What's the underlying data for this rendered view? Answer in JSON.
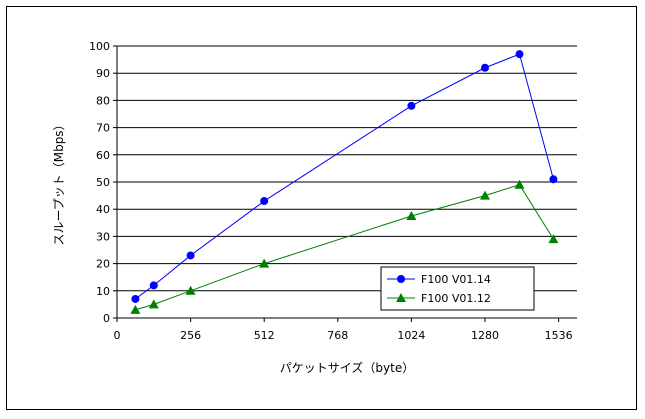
{
  "chart_data": {
    "type": "line",
    "xlabel": "パケットサイズ（byte）",
    "ylabel": "スループット（Mbps）",
    "xlim": [
      0,
      1600
    ],
    "ylim": [
      0,
      100
    ],
    "xticks": [
      0,
      256,
      512,
      768,
      1024,
      1280,
      1536
    ],
    "yticks": [
      0,
      10,
      20,
      30,
      40,
      50,
      60,
      70,
      80,
      90,
      100
    ],
    "grid": "horizontal",
    "legend": "lower-right",
    "series": [
      {
        "name": "F100 V01.14",
        "color": "#0000ff",
        "marker": "circle",
        "points": [
          [
            64,
            7
          ],
          [
            128,
            12
          ],
          [
            256,
            23
          ],
          [
            512,
            43
          ],
          [
            1024,
            78
          ],
          [
            1280,
            92
          ],
          [
            1400,
            97
          ],
          [
            1518,
            51
          ]
        ]
      },
      {
        "name": "F100 V01.12",
        "color": "#008000",
        "marker": "triangle",
        "points": [
          [
            64,
            3
          ],
          [
            128,
            5
          ],
          [
            256,
            10
          ],
          [
            512,
            20
          ],
          [
            1024,
            37.5
          ],
          [
            1280,
            45
          ],
          [
            1400,
            49
          ],
          [
            1518,
            29
          ]
        ]
      }
    ]
  }
}
